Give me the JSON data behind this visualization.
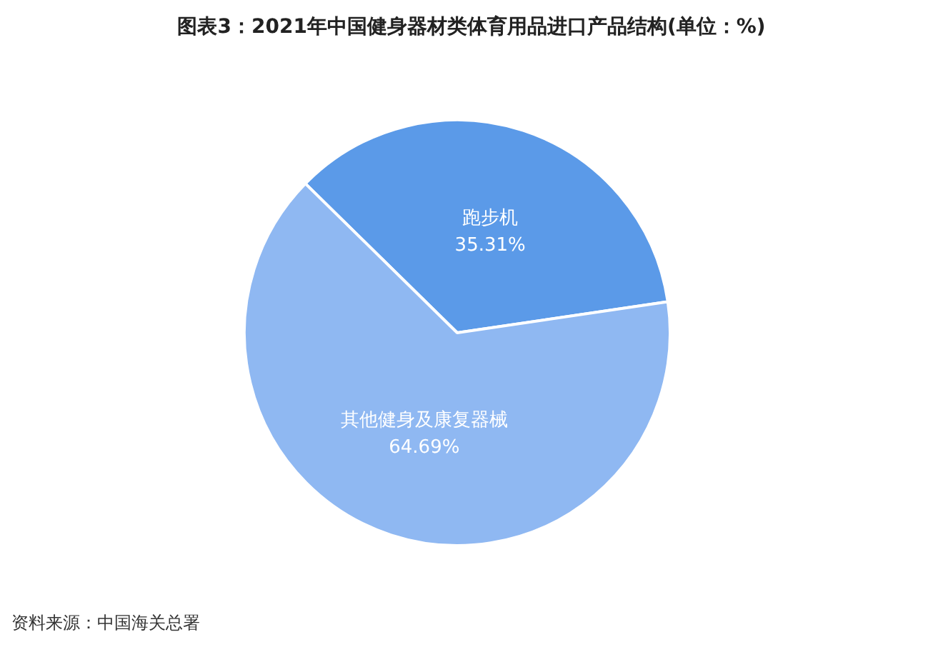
{
  "chart_data": {
    "type": "pie",
    "title": "图表3：2021年中国健身器材类体育用品进口产品结构(单位：%)",
    "categories": [
      "跑步机",
      "其他健身及康复器械"
    ],
    "values": [
      35.31,
      64.69
    ],
    "colors": [
      "#5b9ae8",
      "#8fb8f2"
    ],
    "value_labels": [
      "35.31%",
      "64.69%"
    ],
    "annotations": [
      "资料来源：中国海关总署"
    ]
  }
}
